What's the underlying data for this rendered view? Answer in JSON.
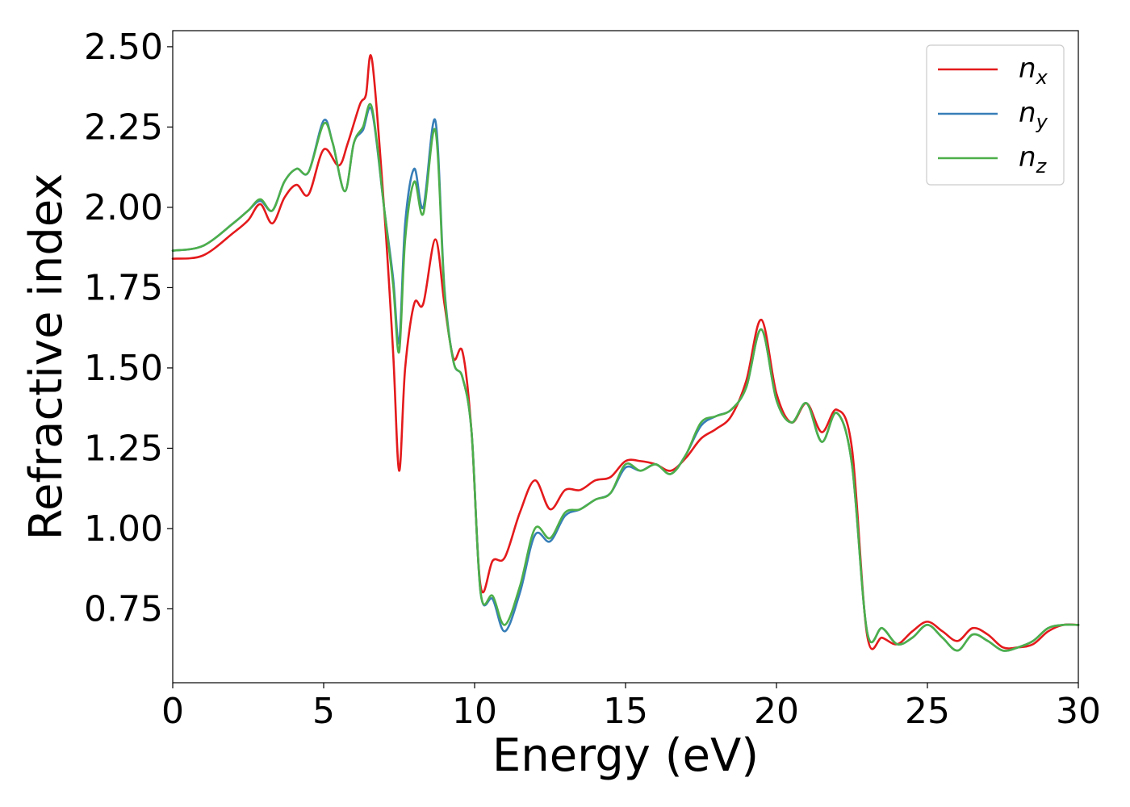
{
  "chart_data": {
    "type": "line",
    "title": "",
    "xlabel": "Energy (eV)",
    "ylabel": "Refractive index",
    "xlim": [
      0,
      30
    ],
    "ylim": [
      0.52,
      2.55
    ],
    "xticks": [
      0,
      5,
      10,
      15,
      20,
      25,
      30
    ],
    "xtick_labels": [
      "0",
      "5",
      "10",
      "15",
      "20",
      "25",
      "30"
    ],
    "yticks": [
      0.75,
      1.0,
      1.25,
      1.5,
      1.75,
      2.0,
      2.25,
      2.5
    ],
    "ytick_labels": [
      "0.75",
      "1.00",
      "1.25",
      "1.50",
      "1.75",
      "2.00",
      "2.25",
      "2.50"
    ],
    "grid": false,
    "legend_position": "top-right",
    "series": [
      {
        "name": "n_x",
        "label_main": "n",
        "label_sub": "x",
        "color": "#e41a1c",
        "x": [
          0,
          1,
          2,
          2.5,
          2.9,
          3.3,
          3.7,
          4.1,
          4.5,
          5.0,
          5.5,
          5.8,
          6.2,
          6.4,
          6.6,
          7.0,
          7.3,
          7.5,
          7.7,
          8.0,
          8.3,
          8.7,
          9.0,
          9.3,
          9.6,
          9.9,
          10.2,
          10.6,
          11.0,
          11.5,
          12.0,
          12.5,
          13.0,
          13.5,
          14.0,
          14.5,
          15.0,
          15.5,
          16.0,
          16.5,
          17.0,
          17.5,
          18.0,
          18.5,
          19.0,
          19.5,
          20.0,
          20.5,
          21.0,
          21.5,
          22.0,
          22.5,
          23.0,
          23.5,
          24.0,
          24.5,
          25.0,
          25.5,
          26.0,
          26.5,
          27.0,
          27.5,
          28.0,
          28.5,
          29.0,
          29.5,
          30.0
        ],
        "y": [
          1.84,
          1.85,
          1.92,
          1.96,
          2.01,
          1.95,
          2.03,
          2.07,
          2.04,
          2.18,
          2.13,
          2.2,
          2.32,
          2.35,
          2.46,
          2.0,
          1.55,
          1.18,
          1.5,
          1.7,
          1.7,
          1.9,
          1.7,
          1.53,
          1.55,
          1.3,
          0.82,
          0.9,
          0.91,
          1.05,
          1.15,
          1.06,
          1.12,
          1.12,
          1.15,
          1.16,
          1.21,
          1.21,
          1.2,
          1.18,
          1.22,
          1.28,
          1.31,
          1.35,
          1.46,
          1.65,
          1.42,
          1.33,
          1.39,
          1.3,
          1.37,
          1.25,
          0.67,
          0.66,
          0.64,
          0.68,
          0.71,
          0.68,
          0.65,
          0.69,
          0.67,
          0.63,
          0.63,
          0.64,
          0.68,
          0.7,
          0.7
        ]
      },
      {
        "name": "n_y",
        "label_main": "n",
        "label_sub": "y",
        "color": "#377eb8",
        "x": [
          0,
          1,
          2,
          2.5,
          2.9,
          3.3,
          3.7,
          4.1,
          4.5,
          5.0,
          5.3,
          5.7,
          6.0,
          6.3,
          6.6,
          7.0,
          7.3,
          7.5,
          7.7,
          8.0,
          8.3,
          8.7,
          9.0,
          9.3,
          9.6,
          9.9,
          10.2,
          10.6,
          11.0,
          11.5,
          12.0,
          12.5,
          13.0,
          13.5,
          14.0,
          14.5,
          15.0,
          15.5,
          16.0,
          16.5,
          17.0,
          17.5,
          18.0,
          18.5,
          19.0,
          19.5,
          20.0,
          20.5,
          21.0,
          21.5,
          22.0,
          22.5,
          23.0,
          23.5,
          24.0,
          24.5,
          25.0,
          25.5,
          26.0,
          26.5,
          27.0,
          27.5,
          28.0,
          28.5,
          29.0,
          29.5,
          30.0
        ],
        "y": [
          1.865,
          1.88,
          1.95,
          1.99,
          2.02,
          1.99,
          2.08,
          2.12,
          2.11,
          2.27,
          2.2,
          2.05,
          2.2,
          2.24,
          2.3,
          2.0,
          1.78,
          1.58,
          1.95,
          2.12,
          2.0,
          2.27,
          1.75,
          1.52,
          1.47,
          1.3,
          0.8,
          0.78,
          0.68,
          0.8,
          0.98,
          0.96,
          1.04,
          1.06,
          1.09,
          1.11,
          1.19,
          1.18,
          1.2,
          1.17,
          1.23,
          1.32,
          1.35,
          1.37,
          1.44,
          1.62,
          1.4,
          1.33,
          1.39,
          1.27,
          1.36,
          1.2,
          0.68,
          0.69,
          0.64,
          0.66,
          0.7,
          0.66,
          0.62,
          0.67,
          0.65,
          0.62,
          0.63,
          0.65,
          0.69,
          0.7,
          0.7
        ]
      },
      {
        "name": "n_z",
        "label_main": "n",
        "label_sub": "z",
        "color": "#4daf4a",
        "x": [
          0,
          1,
          2,
          2.5,
          2.9,
          3.3,
          3.7,
          4.1,
          4.5,
          5.0,
          5.3,
          5.7,
          6.0,
          6.3,
          6.6,
          7.0,
          7.3,
          7.5,
          7.7,
          8.0,
          8.3,
          8.7,
          9.0,
          9.3,
          9.6,
          9.9,
          10.2,
          10.6,
          11.0,
          11.5,
          12.0,
          12.5,
          13.0,
          13.5,
          14.0,
          14.5,
          15.0,
          15.5,
          16.0,
          16.5,
          17.0,
          17.5,
          18.0,
          18.5,
          19.0,
          19.5,
          20.0,
          20.5,
          21.0,
          21.5,
          22.0,
          22.5,
          23.0,
          23.5,
          24.0,
          24.5,
          25.0,
          25.5,
          26.0,
          26.5,
          27.0,
          27.5,
          28.0,
          28.5,
          29.0,
          29.5,
          30.0
        ],
        "y": [
          1.865,
          1.88,
          1.95,
          1.99,
          2.025,
          1.99,
          2.08,
          2.12,
          2.11,
          2.26,
          2.2,
          2.05,
          2.2,
          2.25,
          2.31,
          2.0,
          1.76,
          1.55,
          1.9,
          2.08,
          1.98,
          2.24,
          1.74,
          1.52,
          1.47,
          1.3,
          0.8,
          0.79,
          0.7,
          0.82,
          1.0,
          0.97,
          1.05,
          1.06,
          1.09,
          1.11,
          1.2,
          1.18,
          1.2,
          1.17,
          1.23,
          1.33,
          1.35,
          1.37,
          1.44,
          1.62,
          1.4,
          1.33,
          1.39,
          1.27,
          1.36,
          1.2,
          0.68,
          0.69,
          0.64,
          0.66,
          0.7,
          0.66,
          0.62,
          0.67,
          0.65,
          0.62,
          0.63,
          0.65,
          0.69,
          0.7,
          0.7
        ]
      }
    ]
  },
  "colors": {
    "frame": "#000000",
    "background": "#ffffff",
    "legend_border": "#cccccc"
  }
}
